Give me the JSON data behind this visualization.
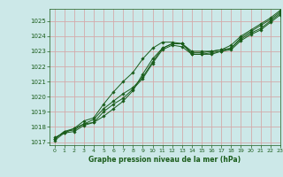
{
  "title": "Graphe pression niveau de la mer (hPa)",
  "bg_color": "#cce8e8",
  "grid_color": "#d4aaaa",
  "line_color": "#1a5c1a",
  "xlim": [
    -0.5,
    23
  ],
  "ylim": [
    1016.8,
    1025.8
  ],
  "xticks": [
    0,
    1,
    2,
    3,
    4,
    5,
    6,
    7,
    8,
    9,
    10,
    11,
    12,
    13,
    14,
    15,
    16,
    17,
    18,
    19,
    20,
    21,
    22,
    23
  ],
  "yticks": [
    1017,
    1018,
    1019,
    1020,
    1021,
    1022,
    1023,
    1024,
    1025
  ],
  "series": [
    {
      "x": [
        0,
        1,
        2,
        3,
        4,
        5,
        6,
        7,
        8,
        9,
        10,
        11,
        12,
        13,
        14,
        15,
        16,
        17,
        18,
        19,
        20,
        21,
        22,
        23
      ],
      "y": [
        1017.2,
        1017.7,
        1017.8,
        1018.2,
        1018.5,
        1019.2,
        1019.7,
        1020.2,
        1020.6,
        1021.3,
        1022.3,
        1023.2,
        1023.5,
        1023.5,
        1022.9,
        1022.9,
        1023.0,
        1023.1,
        1023.2,
        1023.8,
        1024.2,
        1024.5,
        1025.0,
        1025.5
      ]
    },
    {
      "x": [
        0,
        1,
        2,
        3,
        4,
        5,
        6,
        7,
        8,
        9,
        10,
        11,
        12,
        13,
        14,
        15,
        16,
        17,
        18,
        19,
        20,
        21,
        22,
        23
      ],
      "y": [
        1017.3,
        1017.6,
        1017.9,
        1018.2,
        1018.3,
        1019.0,
        1019.5,
        1019.9,
        1020.5,
        1021.2,
        1022.2,
        1023.1,
        1023.4,
        1023.3,
        1022.8,
        1022.8,
        1022.9,
        1023.0,
        1023.1,
        1023.7,
        1024.1,
        1024.4,
        1024.9,
        1025.4
      ]
    },
    {
      "x": [
        0,
        1,
        2,
        3,
        4,
        5,
        6,
        7,
        8,
        9,
        10,
        11,
        12,
        13,
        14,
        15,
        16,
        17,
        18,
        19,
        20,
        21,
        22,
        23
      ],
      "y": [
        1017.1,
        1017.6,
        1017.7,
        1018.1,
        1018.3,
        1018.7,
        1019.2,
        1019.7,
        1020.4,
        1021.5,
        1022.5,
        1023.2,
        1023.5,
        1023.5,
        1022.8,
        1022.8,
        1022.8,
        1023.0,
        1023.2,
        1023.9,
        1024.3,
        1024.7,
        1025.1,
        1025.6
      ]
    },
    {
      "x": [
        0,
        1,
        2,
        3,
        4,
        5,
        6,
        7,
        8,
        9,
        10,
        11,
        12,
        13,
        14,
        15,
        16,
        17,
        18,
        19,
        20,
        21,
        22,
        23
      ],
      "y": [
        1017.2,
        1017.7,
        1017.9,
        1018.4,
        1018.6,
        1019.5,
        1020.3,
        1021.0,
        1021.6,
        1022.5,
        1023.2,
        1023.6,
        1023.6,
        1023.5,
        1023.0,
        1023.0,
        1023.0,
        1023.1,
        1023.4,
        1024.0,
        1024.4,
        1024.8,
        1025.2,
        1025.7
      ]
    }
  ],
  "figsize": [
    3.2,
    2.0
  ],
  "dpi": 100
}
